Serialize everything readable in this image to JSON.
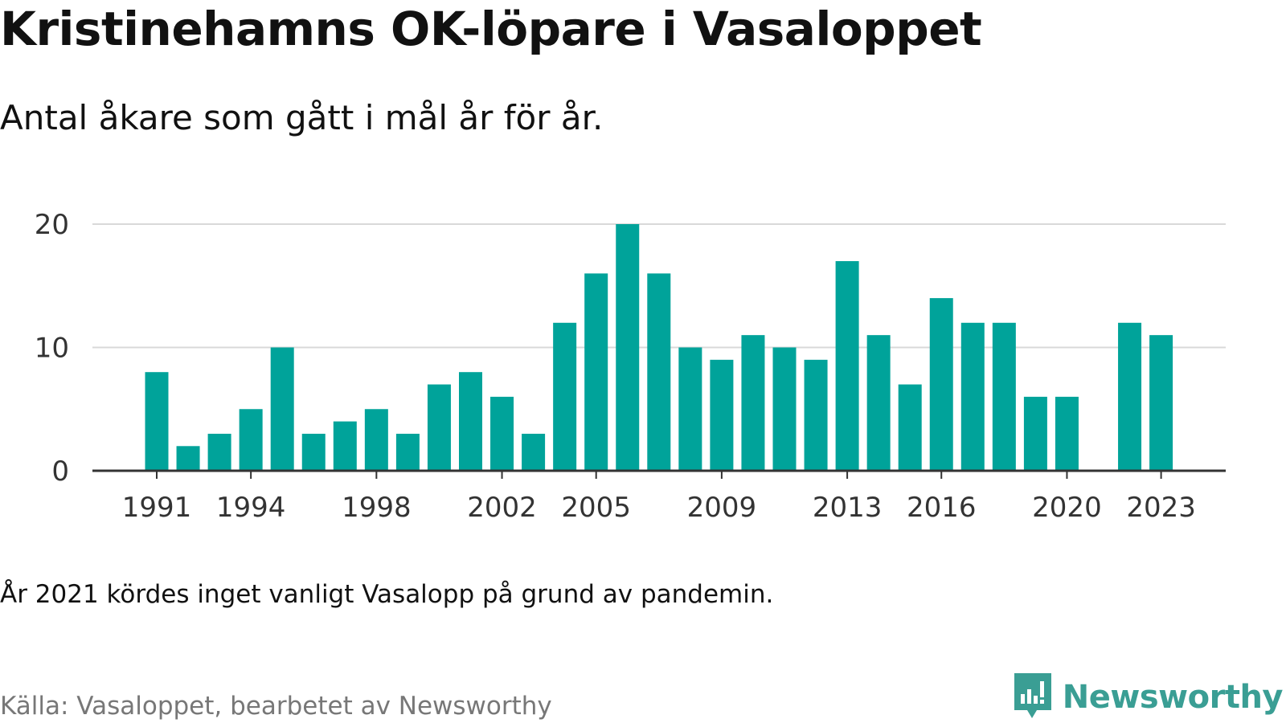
{
  "title": "Kristinehamns OK-löpare i Vasaloppet",
  "subtitle": "Antal åkare som gått i mål år för år.",
  "note": "År 2021 kördes inget vanligt Vasalopp på grund av pandemin.",
  "source": "Källa: Vasaloppet, bearbetet av Newsworthy",
  "brand": {
    "name": "Newsworthy",
    "icon": "newsworthy-logo-icon",
    "color": "#3a9e94"
  },
  "chart_data": {
    "type": "bar",
    "categories": [
      "1991",
      "1992",
      "1993",
      "1994",
      "1995",
      "1996",
      "1997",
      "1998",
      "1999",
      "2000",
      "2001",
      "2002",
      "2003",
      "2004",
      "2005",
      "2006",
      "2007",
      "2008",
      "2009",
      "2010",
      "2011",
      "2012",
      "2013",
      "2014",
      "2015",
      "2016",
      "2017",
      "2018",
      "2019",
      "2020",
      "2021",
      "2022",
      "2023"
    ],
    "values": [
      8,
      2,
      3,
      5,
      10,
      3,
      4,
      5,
      3,
      7,
      8,
      6,
      3,
      12,
      16,
      20,
      16,
      10,
      9,
      11,
      10,
      9,
      17,
      11,
      7,
      14,
      12,
      12,
      6,
      6,
      null,
      12,
      11
    ],
    "x_tick_labels": [
      "1991",
      "1994",
      "1998",
      "2002",
      "2005",
      "2009",
      "2013",
      "2016",
      "2020",
      "2023"
    ],
    "y_ticks": [
      0,
      10,
      20
    ],
    "ylim": [
      0,
      20
    ],
    "grid": true,
    "bar_color": "#00a39a",
    "grid_color": "#d9d9d9",
    "axis_color": "#333333"
  }
}
